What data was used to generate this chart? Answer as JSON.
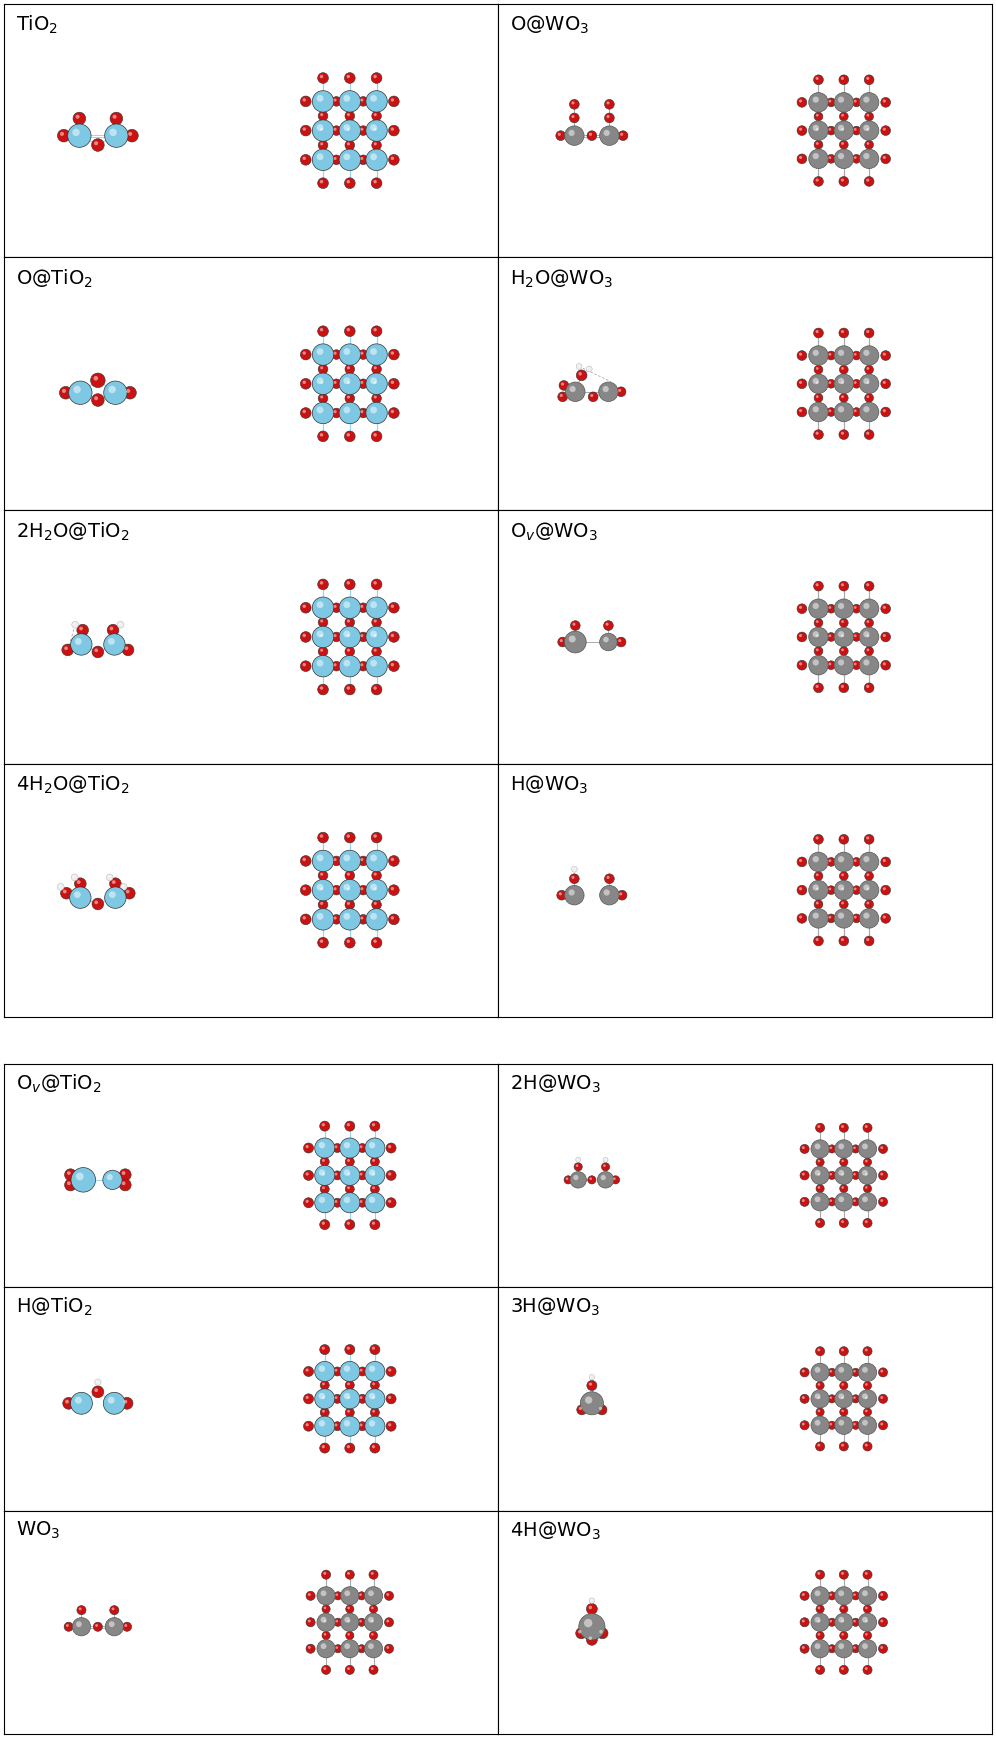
{
  "top_cells": [
    {
      "label": "TiO$_2$",
      "mol": "TiO2",
      "slab": "TiO2"
    },
    {
      "label": "O@WO$_3$",
      "mol": "O_WO3",
      "slab": "WO3"
    },
    {
      "label": "O@TiO$_2$",
      "mol": "O_TiO2",
      "slab": "TiO2"
    },
    {
      "label": "H$_2$O@WO$_3$",
      "mol": "H2O_WO3",
      "slab": "WO3"
    },
    {
      "label": "2H$_2$O@TiO$_2$",
      "mol": "2H2O_TiO2",
      "slab": "TiO2"
    },
    {
      "label": "O$_v$@WO$_3$",
      "mol": "Ov_WO3",
      "slab": "WO3"
    },
    {
      "label": "4H$_2$O@TiO$_2$",
      "mol": "4H2O_TiO2",
      "slab": "TiO2"
    },
    {
      "label": "H@WO$_3$",
      "mol": "H_WO3",
      "slab": "WO3"
    }
  ],
  "bot_cells": [
    {
      "label": "O$_v$@TiO$_2$",
      "mol": "Ov_TiO2",
      "slab": "TiO2"
    },
    {
      "label": "2H@WO$_3$",
      "mol": "2H_WO3",
      "slab": "WO3"
    },
    {
      "label": "H@TiO$_2$",
      "mol": "H_TiO2",
      "slab": "TiO2"
    },
    {
      "label": "3H@WO$_3$",
      "mol": "3H_WO3",
      "slab": "WO3"
    },
    {
      "label": "WO$_3$",
      "mol": "WO3",
      "slab": "WO3"
    },
    {
      "label": "4H@WO$_3$",
      "mol": "4H_WO3",
      "slab": "WO3"
    }
  ],
  "Ti_color": "#7EC8E3",
  "O_color": "#CC1111",
  "W_color": "#878787",
  "H_color": "#EFEFEF",
  "bond_Ti": "#9ED4E8",
  "bond_W": "#AAAAAA",
  "label_fs": 14
}
